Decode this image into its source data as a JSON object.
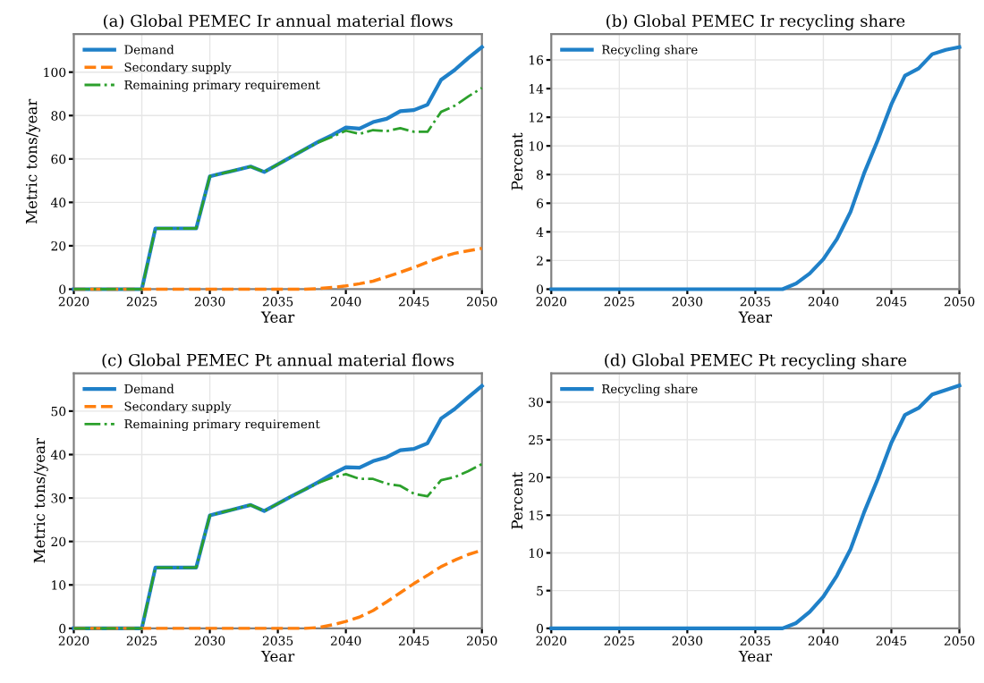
{
  "chart_data": [
    {
      "type": "line",
      "title": "(a) Global PEMEC Ir annual material flows",
      "xlabel": "Year",
      "ylabel": "Metric tons/year",
      "xlim": [
        2020,
        2050
      ],
      "xticks": [
        2020,
        2025,
        2030,
        2035,
        2040,
        2045,
        2050
      ],
      "ylim": [
        0,
        117.5
      ],
      "yticks": [
        0,
        20,
        40,
        60,
        80,
        100
      ],
      "grid": true,
      "legend": "top left",
      "x": [
        2020,
        2021,
        2022,
        2023,
        2024,
        2025,
        2026,
        2027,
        2028,
        2029,
        2030,
        2031,
        2032,
        2033,
        2034,
        2035,
        2036,
        2037,
        2038,
        2039,
        2040,
        2041,
        2042,
        2043,
        2044,
        2045,
        2046,
        2047,
        2048,
        2049,
        2050
      ],
      "series": [
        {
          "name": "Demand",
          "color": "#1f80c8",
          "line_style": "solid",
          "values": [
            0,
            0,
            0,
            0,
            0,
            0,
            28,
            28,
            28,
            28,
            52,
            53.5,
            55,
            56.5,
            54,
            57.5,
            61,
            64.5,
            68,
            71,
            74.5,
            74,
            77,
            78.5,
            82,
            82.5,
            85,
            96.5,
            101,
            106.5,
            111.5
          ]
        },
        {
          "name": "Secondary supply",
          "color": "#ff7f0e",
          "line_style": "dashed",
          "values": [
            0,
            0,
            0,
            0,
            0,
            0,
            0,
            0,
            0,
            0,
            0,
            0,
            0,
            0,
            0,
            0,
            0,
            0,
            0.3,
            0.8,
            1.5,
            2.5,
            3.7,
            5.7,
            7.8,
            10,
            12.5,
            14.8,
            16.5,
            17.7,
            18.8
          ]
        },
        {
          "name": "Remaining primary requirement",
          "color": "#2ca02c",
          "line_style": "dashdot",
          "values": [
            0,
            0,
            0,
            0,
            0,
            0,
            28,
            28,
            28,
            28,
            52,
            53.5,
            55,
            56.5,
            54,
            57.5,
            61,
            64.5,
            67.7,
            70.2,
            73,
            71.5,
            73.3,
            72.8,
            74.2,
            72.5,
            72.5,
            81.7,
            84.5,
            88.8,
            92.7
          ]
        }
      ]
    },
    {
      "type": "line",
      "title": "(b) Global PEMEC Ir recycling share",
      "xlabel": "Year",
      "ylabel": "Percent",
      "xlim": [
        2020,
        2050
      ],
      "xticks": [
        2020,
        2025,
        2030,
        2035,
        2040,
        2045,
        2050
      ],
      "ylim": [
        0,
        17.8
      ],
      "yticks": [
        0,
        2,
        4,
        6,
        8,
        10,
        12,
        14,
        16
      ],
      "grid": true,
      "legend": "top left",
      "x": [
        2020,
        2021,
        2022,
        2023,
        2024,
        2025,
        2026,
        2027,
        2028,
        2029,
        2030,
        2031,
        2032,
        2033,
        2034,
        2035,
        2036,
        2037,
        2038,
        2039,
        2040,
        2041,
        2042,
        2043,
        2044,
        2045,
        2046,
        2047,
        2048,
        2049,
        2050
      ],
      "series": [
        {
          "name": "Recycling share",
          "color": "#1f80c8",
          "line_style": "solid",
          "values": [
            0,
            0,
            0,
            0,
            0,
            0,
            0,
            0,
            0,
            0,
            0,
            0,
            0,
            0,
            0,
            0,
            0,
            0,
            0.4,
            1.1,
            2.1,
            3.5,
            5.4,
            8.1,
            10.4,
            12.9,
            14.9,
            15.4,
            16.4,
            16.7,
            16.9
          ]
        }
      ]
    },
    {
      "type": "line",
      "title": "(c) Global PEMEC Pt annual material flows",
      "xlabel": "Year",
      "ylabel": "Metric tons/year",
      "xlim": [
        2020,
        2050
      ],
      "xticks": [
        2020,
        2025,
        2030,
        2035,
        2040,
        2045,
        2050
      ],
      "ylim": [
        0,
        58.7
      ],
      "yticks": [
        0,
        10,
        20,
        30,
        40,
        50
      ],
      "grid": true,
      "legend": "top left",
      "x": [
        2020,
        2021,
        2022,
        2023,
        2024,
        2025,
        2026,
        2027,
        2028,
        2029,
        2030,
        2031,
        2032,
        2033,
        2034,
        2035,
        2036,
        2037,
        2038,
        2039,
        2040,
        2041,
        2042,
        2043,
        2044,
        2045,
        2046,
        2047,
        2048,
        2049,
        2050
      ],
      "series": [
        {
          "name": "Demand",
          "color": "#1f80c8",
          "line_style": "solid",
          "values": [
            0,
            0,
            0,
            0,
            0,
            0,
            14,
            14,
            14,
            14,
            26,
            26.8,
            27.6,
            28.4,
            27,
            28.7,
            30.4,
            32,
            33.7,
            35.5,
            37.1,
            37,
            38.5,
            39.4,
            41,
            41.3,
            42.6,
            48.3,
            50.5,
            53.2,
            55.8
          ]
        },
        {
          "name": "Secondary supply",
          "color": "#ff7f0e",
          "line_style": "dashed",
          "values": [
            0,
            0,
            0,
            0,
            0,
            0,
            0,
            0,
            0,
            0,
            0,
            0,
            0,
            0,
            0,
            0,
            0,
            0,
            0.2,
            0.8,
            1.6,
            2.6,
            4.1,
            6.1,
            8.2,
            10.3,
            12.2,
            14.2,
            15.7,
            17,
            18
          ]
        },
        {
          "name": "Remaining primary requirement",
          "color": "#2ca02c",
          "line_style": "dashdot",
          "values": [
            0,
            0,
            0,
            0,
            0,
            0,
            14,
            14,
            14,
            14,
            26,
            26.8,
            27.6,
            28.4,
            27,
            28.7,
            30.4,
            32,
            33.5,
            34.7,
            35.5,
            34.4,
            34.4,
            33.3,
            32.8,
            31,
            30.4,
            34.1,
            34.8,
            36.2,
            37.8
          ]
        }
      ]
    },
    {
      "type": "line",
      "title": "(d) Global PEMEC Pt recycling share",
      "xlabel": "Year",
      "ylabel": "Percent",
      "xlim": [
        2020,
        2050
      ],
      "xticks": [
        2020,
        2025,
        2030,
        2035,
        2040,
        2045,
        2050
      ],
      "ylim": [
        0,
        33.8
      ],
      "yticks": [
        0,
        5,
        10,
        15,
        20,
        25,
        30
      ],
      "grid": true,
      "legend": "top left",
      "x": [
        2020,
        2021,
        2022,
        2023,
        2024,
        2025,
        2026,
        2027,
        2028,
        2029,
        2030,
        2031,
        2032,
        2033,
        2034,
        2035,
        2036,
        2037,
        2038,
        2039,
        2040,
        2041,
        2042,
        2043,
        2044,
        2045,
        2046,
        2047,
        2048,
        2049,
        2050
      ],
      "series": [
        {
          "name": "Recycling share",
          "color": "#1f80c8",
          "line_style": "solid",
          "values": [
            0,
            0,
            0,
            0,
            0,
            0,
            0,
            0,
            0,
            0,
            0,
            0,
            0,
            0,
            0,
            0,
            0,
            0,
            0.7,
            2.2,
            4.2,
            7,
            10.5,
            15.4,
            19.8,
            24.6,
            28.3,
            29.2,
            31,
            31.6,
            32.2
          ]
        }
      ]
    }
  ]
}
